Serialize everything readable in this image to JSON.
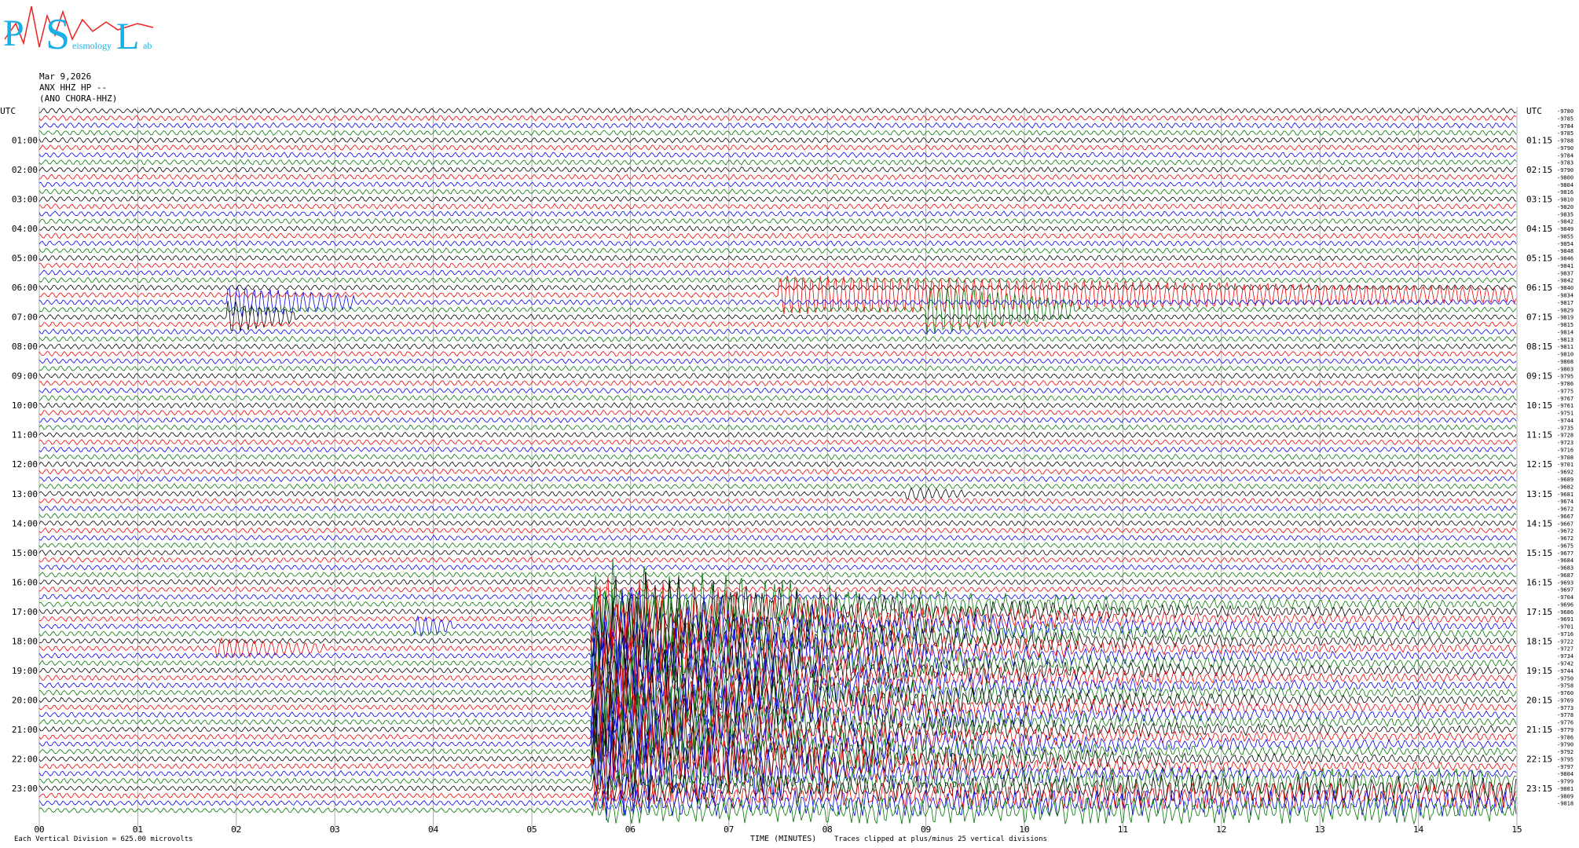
{
  "logo": {
    "letters": [
      "P",
      "S",
      "L"
    ],
    "words": [
      "eismology",
      "ab"
    ]
  },
  "header": {
    "date": "Mar 9,2026",
    "station": "ANX HHZ HP --",
    "location": "(ANO CHORA-HHZ)"
  },
  "left_labels": [
    "UTC",
    "01:00",
    "02:00",
    "03:00",
    "04:00",
    "05:00",
    "06:00",
    "07:00",
    "08:00",
    "09:00",
    "10:00",
    "11:00",
    "12:00",
    "13:00",
    "14:00",
    "15:00",
    "16:00",
    "17:00",
    "18:00",
    "19:00",
    "20:00",
    "21:00",
    "22:00",
    "23:00"
  ],
  "right_labels": [
    "UTC",
    "01:15",
    "02:15",
    "03:15",
    "04:15",
    "05:15",
    "06:15",
    "07:15",
    "08:15",
    "09:15",
    "10:15",
    "11:15",
    "12:15",
    "13:15",
    "14:15",
    "15:15",
    "16:15",
    "17:15",
    "18:15",
    "19:15",
    "20:15",
    "21:15",
    "22:15",
    "23:15"
  ],
  "trace_offsets": [
    "-9780",
    "-9785",
    "-9784",
    "-9785",
    "-9788",
    "-9790",
    "-9784",
    "-9783",
    "-9790",
    "-9800",
    "-9804",
    "-9816",
    "-9810",
    "-9820",
    "-9835",
    "-9842",
    "-9849",
    "-9855",
    "-9854",
    "-9848",
    "-9846",
    "-9841",
    "-9837",
    "-9842",
    "-9840",
    "-9834",
    "-9817",
    "-9829",
    "-9819",
    "-9815",
    "-9814",
    "-9813",
    "-9811",
    "-9810",
    "-9808",
    "-9803",
    "-9795",
    "-9786",
    "-9775",
    "-9767",
    "-9761",
    "-9751",
    "-9744",
    "-9735",
    "-9728",
    "-9723",
    "-9716",
    "-9708",
    "-9701",
    "-9692",
    "-9689",
    "-9682",
    "-9681",
    "-9674",
    "-9672",
    "-9667",
    "-9667",
    "-9672",
    "-9672",
    "-9675",
    "-9677",
    "-9684",
    "-9683",
    "-9687",
    "-9693",
    "-9697",
    "-9704",
    "-9696",
    "-9686",
    "-9691",
    "-9701",
    "-9716",
    "-9722",
    "-9727",
    "-9734",
    "-9742",
    "-9744",
    "-9750",
    "-9758",
    "-9760",
    "-9769",
    "-9773",
    "-9778",
    "-9776",
    "-9779",
    "-9786",
    "-9790",
    "-9792",
    "-9795",
    "-9797",
    "-9804",
    "-9799",
    "-9801",
    "-9809",
    "-9818"
  ],
  "x_axis": {
    "labels": [
      "00",
      "01",
      "02",
      "03",
      "04",
      "05",
      "06",
      "07",
      "08",
      "09",
      "10",
      "11",
      "12",
      "13",
      "14",
      "15"
    ],
    "title": "TIME (MINUTES)"
  },
  "footer": {
    "scale": "Each Vertical Division =  625.00 microvolts",
    "clip": "Traces clipped at plus/minus 25 vertical divisions"
  }
}
